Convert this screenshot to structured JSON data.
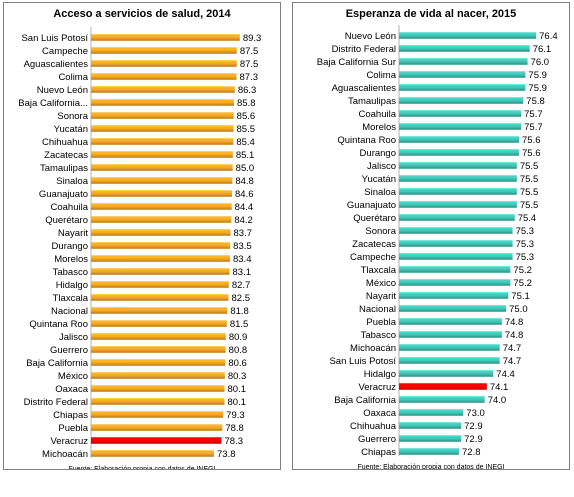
{
  "chart_data": [
    {
      "type": "bar",
      "orientation": "horizontal",
      "title": "Acceso a servicios de salud, 2014",
      "source": "Fuente: Elaboración propia con datos de INEGI",
      "color": "#f5a623",
      "highlight_color": "#ff0000",
      "highlight_category": "Veracruz",
      "categories": [
        "San Luis Potosí",
        "Campeche",
        "Aguascalientes",
        "Colima",
        "Nuevo León",
        "Baja California Sur",
        "Sonora",
        "Yucatán",
        "Chihuahua",
        "Zacatecas",
        "Tamaulipas",
        "Sinaloa",
        "Guanajuato",
        "Coahuila",
        "Querétaro",
        "Nayarit",
        "Durango",
        "Morelos",
        "Tabasco",
        "Hidalgo",
        "Tlaxcala",
        "Nacional",
        "Quintana Roo",
        "Jalisco",
        "Guerrero",
        "Baja California",
        "México",
        "Oaxaca",
        "Distrito Federal",
        "Chiapas",
        "Puebla",
        "Veracruz",
        "Michoacán"
      ],
      "labels": [
        "San Luis Potosí",
        "Campeche",
        "Aguascalientes",
        "Colima",
        "Nuevo León",
        "Baja California...",
        "Sonora",
        "Yucatán",
        "Chihuahua",
        "Zacatecas",
        "Tamaulipas",
        "Sinaloa",
        "Guanajuato",
        "Coahuila",
        "Querétaro",
        "Nayarit",
        "Durango",
        "Morelos",
        "Tabasco",
        "Hidalgo",
        "Tlaxcala",
        "Nacional",
        "Quintana Roo",
        "Jalisco",
        "Guerrero",
        "Baja California",
        "México",
        "Oaxaca",
        "Distrito Federal",
        "Chiapas",
        "Puebla",
        "Veracruz",
        "Michoacán"
      ],
      "values": [
        89.3,
        87.5,
        87.5,
        87.3,
        86.3,
        85.8,
        85.6,
        85.5,
        85.4,
        85.1,
        85.0,
        84.8,
        84.6,
        84.4,
        84.2,
        83.7,
        83.5,
        83.4,
        83.1,
        82.7,
        82.5,
        81.8,
        81.5,
        80.9,
        80.8,
        80.6,
        80.3,
        80.1,
        80.1,
        79.3,
        78.8,
        78.3,
        73.8
      ],
      "value_labels": [
        "89.3",
        "87.5",
        "87.5",
        "87.3",
        "86.3",
        "85.8",
        "85.6",
        "85.5",
        "85.4",
        "85.1",
        "85.0",
        "84.8",
        "84.6",
        "84.4",
        "84.2",
        "83.7",
        "83.5",
        "83.4",
        "83.1",
        "82.7",
        "82.5",
        "81.8",
        "81.5",
        "80.9",
        "80.8",
        "80.6",
        "80.3",
        "80.1",
        "80.1",
        "79.3",
        "78.8",
        "78.3",
        "73.8"
      ],
      "xlim": [
        0,
        90
      ]
    },
    {
      "type": "bar",
      "orientation": "horizontal",
      "title": "Esperanza de vida al nacer, 2015",
      "source": "Fuente: Elaboración propia con datos de INEGI",
      "color": "#3fc4b4",
      "highlight_color": "#ff0000",
      "highlight_category": "Veracruz",
      "categories": [
        "Nuevo León",
        "Distrito Federal",
        "Baja California Sur",
        "Colima",
        "Aguascalientes",
        "Tamaulipas",
        "Coahuila",
        "Morelos",
        "Quintana Roo",
        "Durango",
        "Jalisco",
        "Yucatán",
        "Sinaloa",
        "Guanajuato",
        "Querétaro",
        "Sonora",
        "Zacatecas",
        "Campeche",
        "Tlaxcala",
        "México",
        "Nayarit",
        "Nacional",
        "Puebla",
        "Tabasco",
        "Michoacán",
        "San Luis Potosí",
        "Hidalgo",
        "Veracruz",
        "Baja California",
        "Oaxaca",
        "Chihuahua",
        "Guerrero",
        "Chiapas"
      ],
      "labels": [
        "Nuevo León",
        "Distrito Federal",
        "Baja California Sur",
        "Colima",
        "Aguascalientes",
        "Tamaulipas",
        "Coahuila",
        "Morelos",
        "Quintana Roo",
        "Durango",
        "Jalisco",
        "Yucatán",
        "Sinaloa",
        "Guanajuato",
        "Querétaro",
        "Sonora",
        "Zacatecas",
        "Campeche",
        "Tlaxcala",
        "México",
        "Nayarit",
        "Nacional",
        "Puebla",
        "Tabasco",
        "Michoacán",
        "San Luis Potosí",
        "Hidalgo",
        "Veracruz",
        "Baja California",
        "Oaxaca",
        "Chihuahua",
        "Guerrero",
        "Chiapas"
      ],
      "values": [
        76.4,
        76.1,
        76.0,
        75.9,
        75.9,
        75.8,
        75.7,
        75.7,
        75.6,
        75.6,
        75.5,
        75.5,
        75.5,
        75.5,
        75.4,
        75.3,
        75.3,
        75.3,
        75.2,
        75.2,
        75.1,
        75.0,
        74.8,
        74.8,
        74.7,
        74.7,
        74.4,
        74.1,
        74.0,
        73.0,
        72.9,
        72.9,
        72.8
      ],
      "value_labels": [
        "76.4",
        "76.1",
        "76.0",
        "75.9",
        "75.9",
        "75.8",
        "75.7",
        "75.7",
        "75.6",
        "75.6",
        "75.5",
        "75.5",
        "75.5",
        "75.5",
        "75.4",
        "75.3",
        "75.3",
        "75.3",
        "75.2",
        "75.2",
        "75.1",
        "75.0",
        "74.8",
        "74.8",
        "74.7",
        "74.7",
        "74.4",
        "74.1",
        "74.0",
        "73.0",
        "72.9",
        "72.9",
        "72.8"
      ],
      "xlim": [
        70,
        77
      ]
    }
  ]
}
